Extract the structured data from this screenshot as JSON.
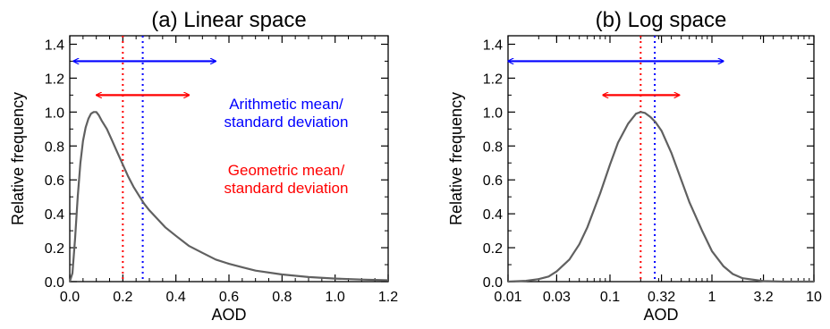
{
  "colors": {
    "arithmetic": "#0000ff",
    "geometric": "#ff0000",
    "curve": "#606060",
    "axis": "#000000"
  },
  "chart_data": [
    {
      "type": "line",
      "title": "(a) Linear space",
      "xlabel": "AOD",
      "ylabel": "Relative frequency",
      "xscale": "linear",
      "xlim": [
        0,
        1.2
      ],
      "ylim": [
        0,
        1.45
      ],
      "xticks": [
        0.0,
        0.2,
        0.4,
        0.6,
        0.8,
        1.0,
        1.2
      ],
      "xtick_labels": [
        "0.0",
        "0.2",
        "0.4",
        "0.6",
        "0.8",
        "1.0",
        "1.2"
      ],
      "yticks": [
        0.0,
        0.2,
        0.4,
        0.6,
        0.8,
        1.0,
        1.2,
        1.4
      ],
      "ytick_labels": [
        "0.0",
        "0.2",
        "0.4",
        "0.6",
        "0.8",
        "1.0",
        "1.2",
        "1.4"
      ],
      "series": [
        {
          "x": [
            0.0,
            0.01,
            0.02,
            0.03,
            0.04,
            0.05,
            0.06,
            0.07,
            0.08,
            0.09,
            0.1,
            0.11,
            0.12,
            0.14,
            0.16,
            0.18,
            0.2,
            0.22,
            0.24,
            0.26,
            0.28,
            0.3,
            0.33,
            0.36,
            0.4,
            0.45,
            0.5,
            0.55,
            0.6,
            0.65,
            0.7,
            0.8,
            0.9,
            1.0,
            1.1,
            1.2
          ],
          "y": [
            0.0,
            0.05,
            0.25,
            0.5,
            0.7,
            0.83,
            0.91,
            0.96,
            0.99,
            1.0,
            1.0,
            0.98,
            0.95,
            0.9,
            0.83,
            0.76,
            0.69,
            0.62,
            0.56,
            0.51,
            0.46,
            0.42,
            0.37,
            0.32,
            0.27,
            0.21,
            0.17,
            0.13,
            0.105,
            0.085,
            0.065,
            0.042,
            0.027,
            0.018,
            0.012,
            0.008
          ]
        }
      ],
      "vlines": [
        {
          "x": 0.2,
          "color": "#ff0000"
        },
        {
          "x": 0.275,
          "color": "#0000ff"
        }
      ],
      "arrows": [
        {
          "x1": 0.0,
          "x2": 0.55,
          "y": 1.3,
          "color": "#0000ff"
        },
        {
          "x1": 0.1,
          "x2": 0.45,
          "y": 1.1,
          "color": "#ff0000"
        }
      ],
      "annotations": [
        {
          "lines": [
            "Arithmetic mean/",
            "standard deviation"
          ],
          "color": "#0000ff"
        },
        {
          "lines": [
            "Geometric mean/",
            "standard deviation"
          ],
          "color": "#ff0000"
        }
      ]
    },
    {
      "type": "line",
      "title": "(b) Log space",
      "xlabel": "AOD",
      "ylabel": "Relative frequency",
      "xscale": "log",
      "xlim": [
        0.01,
        10
      ],
      "ylim": [
        0,
        1.45
      ],
      "xticks": [
        0.01,
        0.03,
        0.1,
        0.32,
        1,
        3.2,
        10
      ],
      "xtick_labels": [
        "0.01",
        "0.03",
        "0.1",
        "0.32",
        "1",
        "3.2",
        "10"
      ],
      "yticks": [
        0.0,
        0.2,
        0.4,
        0.6,
        0.8,
        1.0,
        1.2,
        1.4
      ],
      "ytick_labels": [
        "0.0",
        "0.2",
        "0.4",
        "0.6",
        "0.8",
        "1.0",
        "1.2",
        "1.4"
      ],
      "series": [
        {
          "x": [
            0.01,
            0.015,
            0.02,
            0.025,
            0.03,
            0.04,
            0.05,
            0.06,
            0.08,
            0.1,
            0.12,
            0.15,
            0.18,
            0.2,
            0.22,
            0.25,
            0.28,
            0.32,
            0.4,
            0.5,
            0.6,
            0.8,
            1.0,
            1.3,
            1.6,
            2.0,
            3.2,
            5,
            10
          ],
          "y": [
            0.0,
            0.005,
            0.015,
            0.03,
            0.06,
            0.13,
            0.22,
            0.32,
            0.52,
            0.69,
            0.82,
            0.93,
            0.99,
            1.0,
            0.995,
            0.97,
            0.94,
            0.89,
            0.76,
            0.6,
            0.47,
            0.3,
            0.18,
            0.09,
            0.045,
            0.02,
            0.003,
            0.0,
            0.0
          ]
        }
      ],
      "vlines": [
        {
          "x": 0.2,
          "color": "#ff0000"
        },
        {
          "x": 0.275,
          "color": "#0000ff"
        }
      ],
      "arrows": [
        {
          "x1": 0.01,
          "x2": 1.3,
          "y": 1.3,
          "color": "#0000ff"
        },
        {
          "x1": 0.085,
          "x2": 0.48,
          "y": 1.1,
          "color": "#ff0000"
        }
      ],
      "annotations": []
    }
  ]
}
